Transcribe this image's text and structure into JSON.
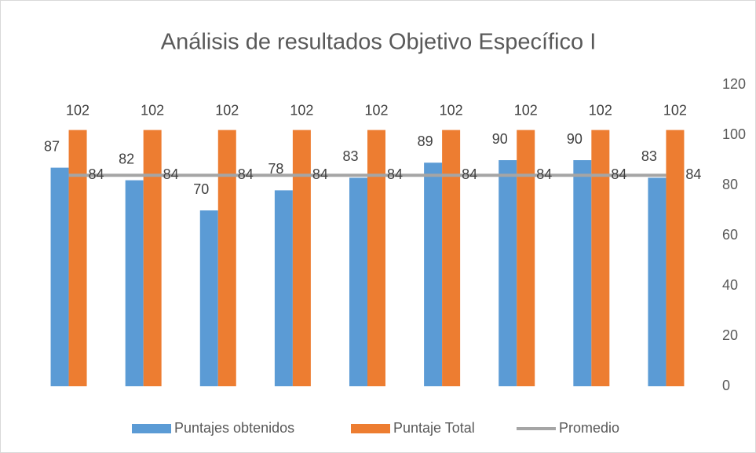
{
  "chart_data": {
    "type": "bar",
    "title": "Análisis de resultados Objetivo Específico I",
    "categories": [
      null,
      null,
      null,
      null,
      null,
      null,
      null,
      null,
      null
    ],
    "series": [
      {
        "name": "Puntajes obtenidos",
        "type": "bar",
        "color": "#5b9bd5",
        "values": [
          87,
          82,
          70,
          78,
          83,
          89,
          90,
          90,
          83
        ]
      },
      {
        "name": "Puntaje Total",
        "type": "bar",
        "color": "#ed7d31",
        "values": [
          102,
          102,
          102,
          102,
          102,
          102,
          102,
          102,
          102
        ]
      },
      {
        "name": "Promedio",
        "type": "line",
        "color": "#a5a5a5",
        "values": [
          84,
          84,
          84,
          84,
          84,
          84,
          84,
          84,
          84
        ]
      }
    ],
    "ylim": [
      0,
      120
    ],
    "yticks": [
      0,
      20,
      40,
      60,
      80,
      100,
      120
    ],
    "y_axis_side": "right",
    "grid": false,
    "legend": "bottom"
  }
}
